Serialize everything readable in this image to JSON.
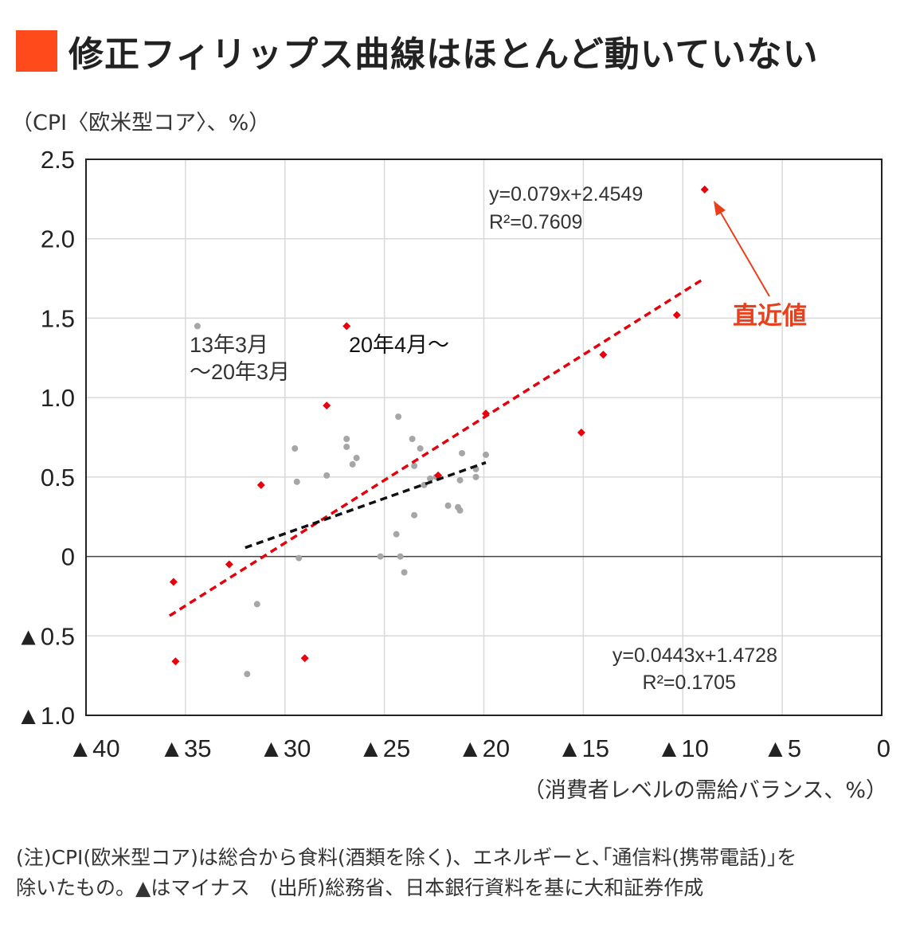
{
  "title": "修正フィリップス曲線はほとんど動いていない",
  "title_marker_color": "#ff4a1c",
  "chart_data": {
    "type": "scatter",
    "ylabel": "（CPI〈欧米型コア〉、%）",
    "xlabel": "（消費者レベルの需給バランス、%）",
    "xlim": [
      -40,
      0
    ],
    "ylim": [
      -1.0,
      2.5
    ],
    "x_ticks": [
      {
        "value": -40,
        "label": "▲40"
      },
      {
        "value": -35,
        "label": "▲35"
      },
      {
        "value": -30,
        "label": "▲30"
      },
      {
        "value": -25,
        "label": "▲25"
      },
      {
        "value": -20,
        "label": "▲20"
      },
      {
        "value": -15,
        "label": "▲15"
      },
      {
        "value": -10,
        "label": "▲10"
      },
      {
        "value": -5,
        "label": "▲5"
      },
      {
        "value": 0,
        "label": "0"
      }
    ],
    "y_ticks": [
      {
        "value": 2.5,
        "label": "2.5"
      },
      {
        "value": 2.0,
        "label": "2.0"
      },
      {
        "value": 1.5,
        "label": "1.5"
      },
      {
        "value": 1.0,
        "label": "1.0"
      },
      {
        "value": 0.5,
        "label": "0.5"
      },
      {
        "value": 0,
        "label": "0"
      },
      {
        "value": -0.5,
        "label": "▲0.5"
      },
      {
        "value": -1.0,
        "label": "▲1.0"
      }
    ],
    "grid": true,
    "series": [
      {
        "name": "13年3月 〜20年3月",
        "color": "#a6a6a6",
        "marker": "circle",
        "points": [
          [
            -34.4,
            1.45
          ],
          [
            -29.5,
            0.68
          ],
          [
            -29.4,
            0.47
          ],
          [
            -29.3,
            -0.01
          ],
          [
            -27.9,
            0.51
          ],
          [
            -26.9,
            0.74
          ],
          [
            -26.9,
            0.69
          ],
          [
            -26.6,
            0.58
          ],
          [
            -26.4,
            0.62
          ],
          [
            -25.2,
            0.0
          ],
          [
            -24.4,
            0.14
          ],
          [
            -24.3,
            0.88
          ],
          [
            -24.2,
            0.0
          ],
          [
            -24.0,
            -0.1
          ],
          [
            -23.6,
            0.74
          ],
          [
            -23.5,
            0.57
          ],
          [
            -23.2,
            0.68
          ],
          [
            -23.5,
            0.26
          ],
          [
            -23.0,
            0.45
          ],
          [
            -22.7,
            0.49
          ],
          [
            -22.4,
            0.5
          ],
          [
            -21.8,
            0.32
          ],
          [
            -21.3,
            0.31
          ],
          [
            -21.2,
            0.29
          ],
          [
            -21.2,
            0.48
          ],
          [
            -21.1,
            0.65
          ],
          [
            -20.4,
            0.5
          ],
          [
            -20.4,
            0.55
          ],
          [
            -19.9,
            0.64
          ],
          [
            -31.4,
            -0.3
          ],
          [
            -31.9,
            -0.74
          ]
        ]
      },
      {
        "name": "20年4月〜",
        "color": "#e8000b",
        "marker": "diamond",
        "points": [
          [
            -35.6,
            -0.16
          ],
          [
            -35.5,
            -0.66
          ],
          [
            -32.8,
            -0.05
          ],
          [
            -31.2,
            0.45
          ],
          [
            -29.0,
            -0.64
          ],
          [
            -27.9,
            0.95
          ],
          [
            -26.9,
            1.45
          ],
          [
            -22.3,
            0.51
          ],
          [
            -19.9,
            0.9
          ],
          [
            -15.1,
            0.78
          ],
          [
            -14.0,
            1.27
          ],
          [
            -10.3,
            1.52
          ],
          [
            -8.9,
            2.31
          ]
        ]
      }
    ],
    "trendlines": [
      {
        "series": "20年4月〜",
        "color": "#e8000b",
        "slope": 0.079,
        "intercept": 2.4549,
        "x_range": [
          -35.8,
          -8.9
        ],
        "equation": "y=0.079x+2.4549",
        "r2": "R²=0.7609"
      },
      {
        "series": "13年3月 〜20年3月",
        "color": "#111111",
        "slope": 0.0443,
        "intercept": 1.4728,
        "x_range": [
          -32.0,
          -19.9
        ],
        "equation": "y=0.0443x+1.4728",
        "r2": "R²=0.1705"
      }
    ],
    "annotations": {
      "series1_label_line1": "13年3月",
      "series1_label_line2": "〜20年3月",
      "series2_label": "20年4月〜",
      "latest_label": "直近値",
      "latest_color": "#e8401c"
    }
  },
  "notes": {
    "line1": "(注)CPI(欧米型コア)は総合から食料(酒類を除く)、エネルギーと､｢通信料(携帯電話)｣を",
    "line2": "除いたもの。▲はマイナス　(出所)総務省、日本銀行資料を基に大和証券作成"
  }
}
